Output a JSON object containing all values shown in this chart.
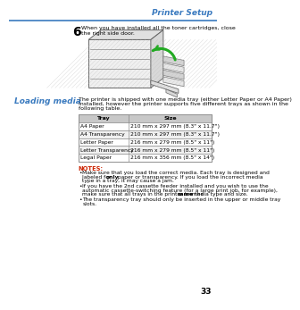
{
  "page_bg": "#ffffff",
  "header_text": "Printer Setup",
  "header_color": "#3a7abf",
  "header_line_color": "#3a7abf",
  "step_number": "6",
  "step_text_line1": "When you have installed all the toner cartridges, close",
  "step_text_line2": "the right side door.",
  "section_title": "Loading media",
  "section_title_color": "#3a7abf",
  "intro_lines": [
    "The printer is shipped with one media tray (either Letter Paper or A4 Paper)",
    "installed, however the printer supports five different trays as shown in the",
    "following table."
  ],
  "table_header_bg": "#c8c8c8",
  "table_border_color": "#909090",
  "table_headers": [
    "Tray",
    "Size"
  ],
  "table_rows": [
    [
      "A4 Paper",
      "210 mm x 297 mm (8.3\" x 11.7\")"
    ],
    [
      "A4 Transparency",
      "210 mm x 297 mm (8.3\" x 11.7\")"
    ],
    [
      "Letter Paper",
      "216 mm x 279 mm (8.5\" x 11\")"
    ],
    [
      "Letter Transparency",
      "216 mm x 279 mm (8.5\" x 11\")"
    ],
    [
      "Legal Paper",
      "216 mm x 356 mm (8.5\" x 14\")"
    ]
  ],
  "notes_label": "NOTES:",
  "notes_label_color": "#cc2200",
  "note1_parts": [
    {
      "text": "Make sure that you load the correct media. Each tray is designed and\nlabeled for ",
      "bold": false
    },
    {
      "text": "only",
      "bold": true
    },
    {
      "text": " paper or transparency. If you load the incorrect media\ntype in a tray, it may cause a jam.",
      "bold": false
    }
  ],
  "note2_parts": [
    {
      "text": "If you have the 2nd cassette feeder installed and you wish to use the\nautomatic cassette-switching feature (for a large print job, for example),\nmake sure that all trays in the printer are the ",
      "bold": false
    },
    {
      "text": "same",
      "bold": true
    },
    {
      "text": " media type and size.",
      "bold": false
    }
  ],
  "note3_parts": [
    {
      "text": "The transparency tray should only be inserted in the upper or middle tray\nslots.",
      "bold": false
    }
  ],
  "page_number": "33",
  "fs_header": 6.5,
  "fs_step_num": 10,
  "fs_body": 4.5,
  "fs_section": 6.5,
  "fs_table_hdr": 4.5,
  "fs_table_body": 4.3,
  "fs_notes_lbl": 4.8,
  "fs_notes": 4.3
}
